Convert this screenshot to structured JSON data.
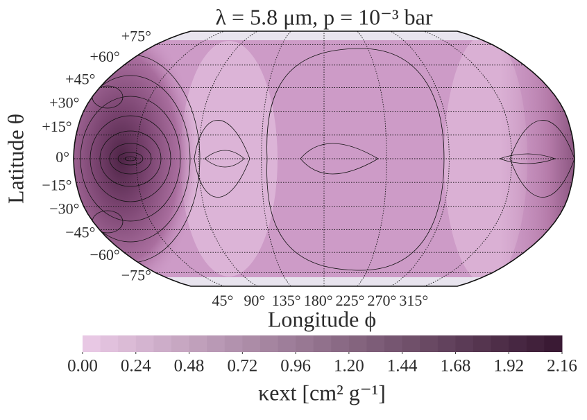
{
  "chart_data": {
    "type": "contour-map",
    "title": "λ = 5.8 μm, p = 10⁻³ bar",
    "xlabel": "Longitude ϕ",
    "ylabel": "Latitude θ",
    "xlim": [
      0,
      360
    ],
    "ylim": [
      -90,
      90
    ],
    "xticks": [
      {
        "value": 45,
        "label": "45°"
      },
      {
        "value": 90,
        "label": "90°"
      },
      {
        "value": 135,
        "label": "135°"
      },
      {
        "value": 180,
        "label": "180°"
      },
      {
        "value": 225,
        "label": "225°"
      },
      {
        "value": 270,
        "label": "270°"
      },
      {
        "value": 315,
        "label": "315°"
      }
    ],
    "yticks": [
      {
        "value": 75,
        "label": "+75°"
      },
      {
        "value": 60,
        "label": "+60°"
      },
      {
        "value": 45,
        "label": "+45°"
      },
      {
        "value": 30,
        "label": "+30°"
      },
      {
        "value": 15,
        "label": "+15°"
      },
      {
        "value": 0,
        "label": "0°"
      },
      {
        "value": -15,
        "label": "−15°"
      },
      {
        "value": -30,
        "label": "−30°"
      },
      {
        "value": -45,
        "label": "−45°"
      },
      {
        "value": -60,
        "label": "−60°"
      },
      {
        "value": -75,
        "label": "−75°"
      }
    ],
    "grid": true,
    "colorbar": {
      "label": "κext [cm² g⁻¹]",
      "colors": [
        "#e8c8e4",
        "#3a1a34"
      ],
      "levels": [
        0,
        0.08,
        0.16,
        0.24,
        0.32,
        0.4,
        0.48,
        0.56,
        0.64,
        0.72,
        0.8,
        0.88,
        0.96,
        1.04,
        1.12,
        1.2,
        1.28,
        1.36,
        1.44,
        1.52,
        1.6,
        1.68,
        1.76,
        1.84,
        1.92,
        2.0,
        2.08,
        2.16
      ],
      "ticks": [
        {
          "value": 0,
          "label": "0.00"
        },
        0.24,
        0.48,
        0.72,
        0.96,
        {
          "value": 1.2,
          "label": "1.20"
        },
        1.44,
        1.68,
        1.92,
        2.16
      ]
    }
  }
}
